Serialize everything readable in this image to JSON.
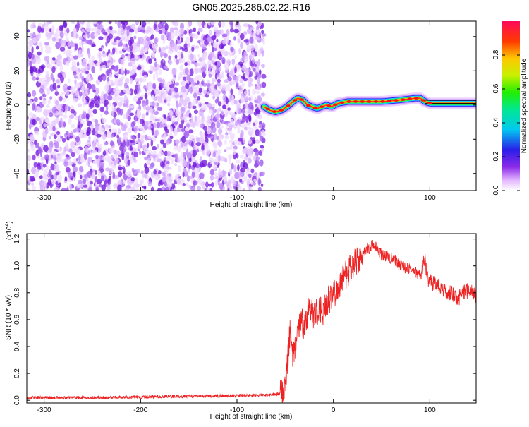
{
  "figure_title": "GN05.2025.286.02.22.R16",
  "colors": {
    "spectrogram_dot": "#7b1fe0",
    "snr_line": "#ee2222",
    "frame": "#000000"
  },
  "chart_data": [
    {
      "type": "heatmap",
      "title": "GN05.2025.286.02.22.R16",
      "xlabel": "Height of straight line (km)",
      "ylabel": "Frequency (Hz)",
      "xlim": [
        -318,
        148
      ],
      "ylim": [
        -50,
        49
      ],
      "xticks": [
        -300,
        -200,
        -100,
        0,
        100
      ],
      "xtick_labels": [
        "-300",
        "-200",
        "-100",
        "0",
        "100"
      ],
      "yticks": [
        -40,
        -20,
        0,
        20,
        40
      ],
      "ytick_labels": [
        "-40",
        "-20",
        "0",
        "20",
        "40"
      ],
      "noise_region_x": [
        -318,
        -72
      ],
      "signal_trace": {
        "x": [
          -72,
          -66,
          -60,
          -54,
          -48,
          -42,
          -37,
          -32,
          -27,
          -22,
          -17,
          -12,
          -7,
          -2,
          5,
          15,
          30,
          50,
          70,
          85,
          90,
          95,
          100,
          120,
          148
        ],
        "frequency": [
          -1,
          -3,
          -4,
          -3,
          -1,
          2,
          4,
          3,
          0,
          -1,
          -2,
          -1,
          0,
          -1,
          1,
          2,
          2,
          2,
          3,
          4,
          4,
          2,
          1,
          1,
          1
        ]
      },
      "colorbar": {
        "label": "Normalized spectral amplitude",
        "range": [
          0,
          1
        ],
        "ticks": [
          0.0,
          0.2,
          0.4,
          0.6,
          0.8
        ],
        "tick_labels": [
          "0.0",
          "0.2",
          "0.4",
          "0.6",
          "0.8"
        ]
      }
    },
    {
      "type": "line",
      "title": "",
      "xlabel": "Height of straight line (km)",
      "ylabel": "SNR (10 * v/v)",
      "y_multiplier_label": "(x10",
      "y_multiplier_exp": "4",
      "y_multiplier_close": ")",
      "xlim": [
        -318,
        148
      ],
      "ylim": [
        -0.02,
        1.24
      ],
      "xticks": [
        -300,
        -200,
        -100,
        0,
        100
      ],
      "xtick_labels": [
        "-300",
        "-200",
        "-100",
        "0",
        "100"
      ],
      "yticks": [
        0.0,
        0.2,
        0.4,
        0.6,
        0.8,
        1.0,
        1.2
      ],
      "ytick_labels": [
        "0.0",
        "0.2",
        "0.4",
        "0.6",
        "0.8",
        "1.0",
        "1.2"
      ],
      "series": [
        {
          "name": "SNR",
          "x": [
            -318,
            -250,
            -200,
            -150,
            -100,
            -65,
            -55,
            -50,
            -47,
            -45,
            -42,
            -38,
            -34,
            -30,
            -25,
            -20,
            -15,
            -10,
            -5,
            0,
            5,
            10,
            15,
            20,
            25,
            30,
            35,
            40,
            45,
            50,
            60,
            70,
            80,
            90,
            95,
            97,
            100,
            105,
            110,
            115,
            120,
            125,
            130,
            135,
            140,
            148
          ],
          "values": [
            0.02,
            0.02,
            0.025,
            0.03,
            0.035,
            0.04,
            0.05,
            0.12,
            0.32,
            0.52,
            0.3,
            0.45,
            0.6,
            0.55,
            0.7,
            0.62,
            0.68,
            0.66,
            0.75,
            0.78,
            0.86,
            0.9,
            0.95,
            1.0,
            1.05,
            1.08,
            1.12,
            1.15,
            1.13,
            1.08,
            1.06,
            1.0,
            0.97,
            0.93,
            1.05,
            0.92,
            0.88,
            0.87,
            0.85,
            0.82,
            0.8,
            0.78,
            0.76,
            0.8,
            0.82,
            0.78
          ]
        }
      ]
    }
  ]
}
